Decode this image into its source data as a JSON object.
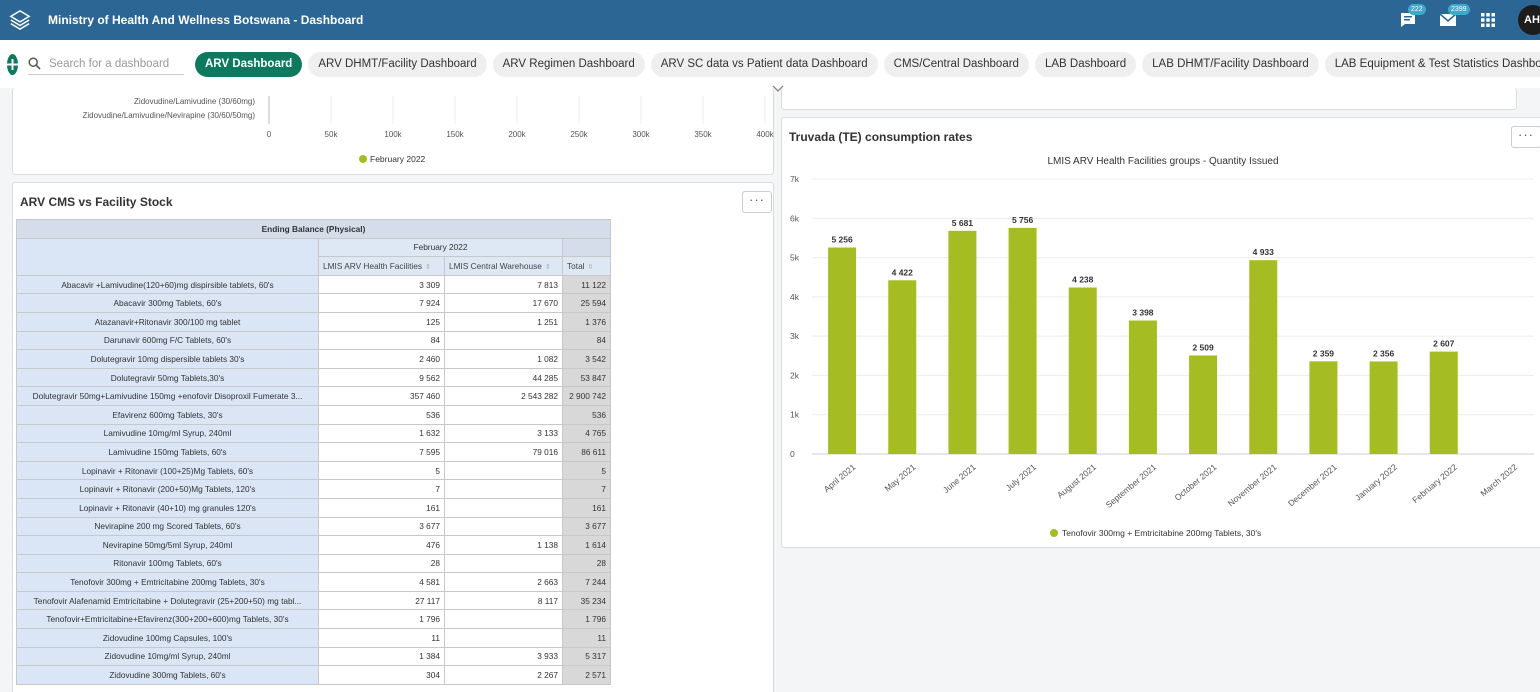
{
  "header": {
    "title": "Ministry of Health And Wellness Botswana - Dashboard",
    "chat_badge": "222",
    "mail_badge": "2399",
    "avatar_initials": "AH",
    "colors": {
      "bar": "#2b6694",
      "accent": "#0d7a5f"
    }
  },
  "toolbar": {
    "search_placeholder": "Search for a dashboard",
    "tabs": [
      {
        "label": "ARV Dashboard",
        "active": true
      },
      {
        "label": "ARV DHMT/Facility Dashboard"
      },
      {
        "label": "ARV Regimen Dashboard"
      },
      {
        "label": "ARV SC data vs Patient data Dashboard"
      },
      {
        "label": "CMS/Central Dashboard"
      },
      {
        "label": "LAB Dashboard"
      },
      {
        "label": "LAB DHMT/Facility Dashboard"
      },
      {
        "label": "LAB Equipment & Test Statistics Dashboard"
      }
    ]
  },
  "top_chart": {
    "row_labels": [
      "Zidovudine/Lamivudine (30/60mg)",
      "Zidovudine/Lamivudine/Nevirapine (30/60/50mg)"
    ],
    "ticks": [
      "0",
      "50k",
      "100k",
      "150k",
      "200k",
      "250k",
      "300k",
      "350k",
      "400k"
    ],
    "legend": "February 2022",
    "legend_color": "#a5bd22"
  },
  "cms_panel": {
    "title": "ARV CMS vs Facility Stock",
    "more_label": "···",
    "header_group": "Ending Balance (Physical)",
    "period": "February 2022",
    "columns": [
      "LMIS ARV Health Facilities",
      "LMIS Central Warehouse",
      "Total"
    ],
    "rows": [
      {
        "name": "Abacavir +Lamivudine(120+60)mg dispirsible tablets, 60's",
        "hf": "3 309",
        "cw": "7 813",
        "total": "11 122"
      },
      {
        "name": "Abacavir 300mg Tablets, 60's",
        "hf": "7 924",
        "cw": "17 670",
        "total": "25 594"
      },
      {
        "name": "Atazanavir+Ritonavir 300/100 mg tablet",
        "hf": "125",
        "cw": "1 251",
        "total": "1 376"
      },
      {
        "name": "Darunavir 600mg F/C Tablets, 60's",
        "hf": "84",
        "cw": "",
        "total": "84"
      },
      {
        "name": "Dolutegravir 10mg dispersible tablets 30's",
        "hf": "2 460",
        "cw": "1 082",
        "total": "3 542"
      },
      {
        "name": "Dolutegravir 50mg Tablets,30's",
        "hf": "9 562",
        "cw": "44 285",
        "total": "53 847"
      },
      {
        "name": "Dolutegravir 50mg+Lamivudine 150mg +enofovir Disoproxil Fumerate 3...",
        "hf": "357 460",
        "cw": "2 543 282",
        "total": "2 900 742"
      },
      {
        "name": "Efavirenz 600mg Tablets, 30's",
        "hf": "536",
        "cw": "",
        "total": "536"
      },
      {
        "name": "Lamivudine 10mg/ml Syrup, 240ml",
        "hf": "1 632",
        "cw": "3 133",
        "total": "4 765"
      },
      {
        "name": "Lamivudine 150mg Tablets, 60's",
        "hf": "7 595",
        "cw": "79 016",
        "total": "86 611"
      },
      {
        "name": "Lopinavir + Ritonavir (100+25)Mg Tablets, 60's",
        "hf": "5",
        "cw": "",
        "total": "5"
      },
      {
        "name": "Lopinavir + Ritonavir (200+50)Mg Tablets, 120's",
        "hf": "7",
        "cw": "",
        "total": "7"
      },
      {
        "name": "Lopinavir + Ritonavir (40+10) mg granules 120's",
        "hf": "161",
        "cw": "",
        "total": "161"
      },
      {
        "name": "Nevirapine 200 mg Scored Tablets, 60's",
        "hf": "3 677",
        "cw": "",
        "total": "3 677"
      },
      {
        "name": "Nevirapine 50mg/5ml Syrup, 240ml",
        "hf": "476",
        "cw": "1 138",
        "total": "1 614"
      },
      {
        "name": "Ritonavir 100mg Tablets, 60's",
        "hf": "28",
        "cw": "",
        "total": "28"
      },
      {
        "name": "Tenofovir 300mg + Emtricitabine 200mg Tablets, 30's",
        "hf": "4 581",
        "cw": "2 663",
        "total": "7 244"
      },
      {
        "name": "Tenofovir Alafenamid Emtricitabine + Dolutegravir (25+200+50) mg tabl...",
        "hf": "27 117",
        "cw": "8 117",
        "total": "35 234"
      },
      {
        "name": "Tenofovir+Emtricitabine+Efavirenz(300+200+600)mg Tablets, 30's",
        "hf": "1 796",
        "cw": "",
        "total": "1 796"
      },
      {
        "name": "Zidovudine 100mg Capsules, 100's",
        "hf": "11",
        "cw": "",
        "total": "11"
      },
      {
        "name": "Zidovudine 10mg/ml Syrup, 240ml",
        "hf": "1 384",
        "cw": "3 933",
        "total": "5 317"
      },
      {
        "name": "Zidovudine 300mg Tablets, 60's",
        "hf": "304",
        "cw": "2 267",
        "total": "2 571"
      }
    ]
  },
  "truvada_panel": {
    "title": "Truvada (TE) consumption rates",
    "more_label": "···"
  },
  "chart_data": {
    "type": "bar",
    "title": "",
    "subtitle": "LMIS ARV Health Facilities groups - Quantity Issued",
    "categories": [
      "April 2021",
      "May 2021",
      "June 2021",
      "July 2021",
      "August 2021",
      "September 2021",
      "October 2021",
      "November 2021",
      "December 2021",
      "January 2022",
      "February 2022",
      "March 2022"
    ],
    "series": [
      {
        "name": "Tenofovir 300mg + Emtricitabine 200mg Tablets, 30's",
        "values": [
          5256,
          4422,
          5681,
          5756,
          4238,
          3398,
          2509,
          4933,
          2359,
          2356,
          2607,
          null
        ],
        "color": "#a5bd22"
      }
    ],
    "value_labels": [
      "5 256",
      "4 422",
      "5 681",
      "5 756",
      "4 238",
      "3 398",
      "2 509",
      "4 933",
      "2 359",
      "2 356",
      "2 607",
      ""
    ],
    "y_ticks": [
      "0",
      "1k",
      "2k",
      "3k",
      "4k",
      "5k",
      "6k",
      "7k"
    ],
    "ylim": [
      0,
      7000
    ],
    "grid": true,
    "legend": "bottom"
  }
}
